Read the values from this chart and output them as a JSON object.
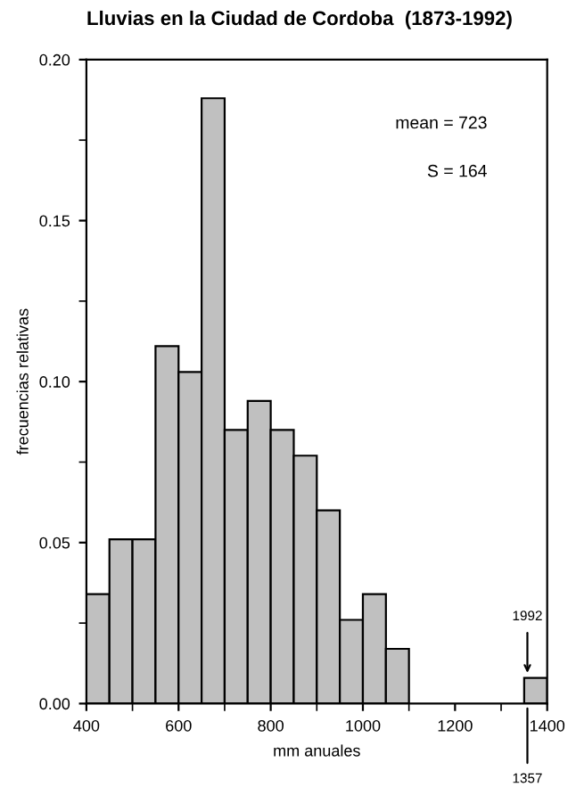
{
  "chart_data": {
    "type": "histogram",
    "title": "Lluvias en la Ciudad de Cordoba  (1873-1992)",
    "xlabel": "mm anuales",
    "ylabel": "frecuencias relativas",
    "color": "#c0c0c0",
    "bins": [
      400,
      450,
      500,
      550,
      600,
      650,
      700,
      750,
      800,
      850,
      900,
      950,
      1000,
      1050,
      1100,
      1150,
      1200,
      1250,
      1300,
      1350,
      1400
    ],
    "values": [
      0.034,
      0.051,
      0.051,
      0.111,
      0.103,
      0.188,
      0.085,
      0.094,
      0.085,
      0.077,
      0.06,
      0.026,
      0.034,
      0.017,
      0,
      0,
      0,
      0,
      0,
      0.008
    ],
    "xlim": [
      400,
      1400
    ],
    "xticks": [
      400,
      600,
      800,
      1000,
      1200,
      1400
    ],
    "ylim": [
      0,
      0.2
    ],
    "yticks": [
      {
        "value": 0,
        "label": "0.00"
      },
      {
        "value": 0.05,
        "label": "0.05"
      },
      {
        "value": 0.1,
        "label": "0.10"
      },
      {
        "value": 0.15,
        "label": "0.15"
      },
      {
        "value": 0.2,
        "label": "0.20"
      }
    ],
    "grid": false,
    "legend": false,
    "annotations": [
      "mean = 723",
      "S = 164",
      {
        "text": "1992",
        "x": 1357,
        "y": 0.008
      },
      {
        "text": "1357",
        "x": 1357,
        "y": 0
      }
    ]
  }
}
